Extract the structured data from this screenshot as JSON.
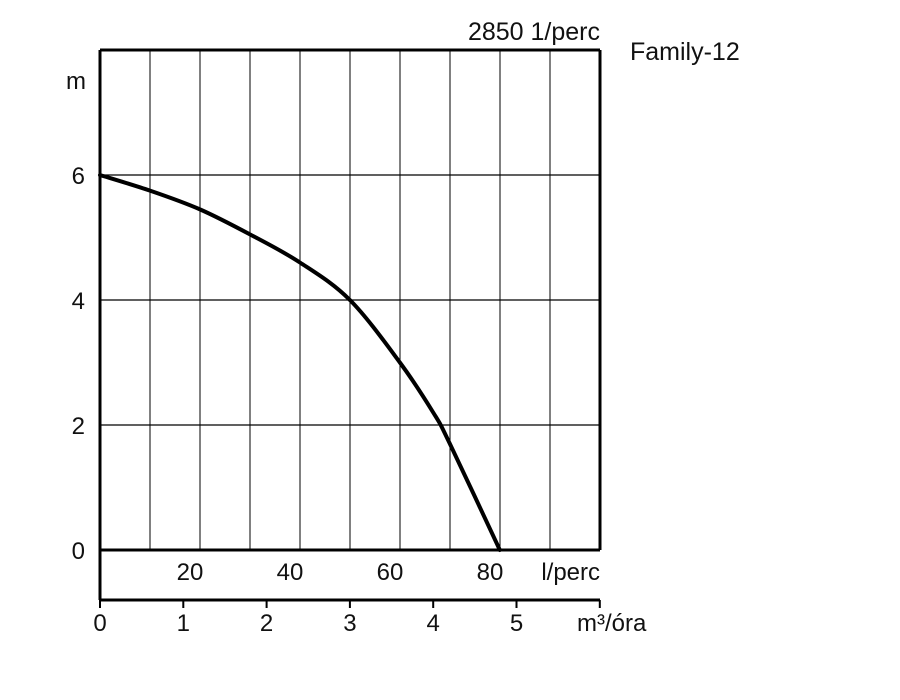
{
  "chart_data": {
    "type": "line",
    "title": "Family-12",
    "subtitle": "2850 1/perc",
    "ylabel": "m",
    "xlabel_lpm": "l/perc",
    "xlabel_m3h": "m³/óra",
    "ylim": [
      0,
      8
    ],
    "xlim_m3h": [
      0,
      6
    ],
    "grid": true,
    "y_ticks": [
      "0",
      "2",
      "4",
      "6"
    ],
    "x_ticks_lpm": [
      "20",
      "40",
      "60",
      "80"
    ],
    "x_ticks_m3h": [
      "0",
      "1",
      "2",
      "3",
      "4",
      "5"
    ],
    "series": [
      {
        "x": [
          0,
          0.6,
          1.2,
          1.8,
          2.4,
          3.0,
          3.6,
          4.0,
          4.2,
          4.8
        ],
        "y": [
          6.0,
          5.75,
          5.45,
          5.05,
          4.6,
          4.0,
          3.0,
          2.2,
          1.7,
          0.0
        ]
      }
    ],
    "colors": {
      "line": "#000000",
      "grid": "#000000"
    }
  }
}
